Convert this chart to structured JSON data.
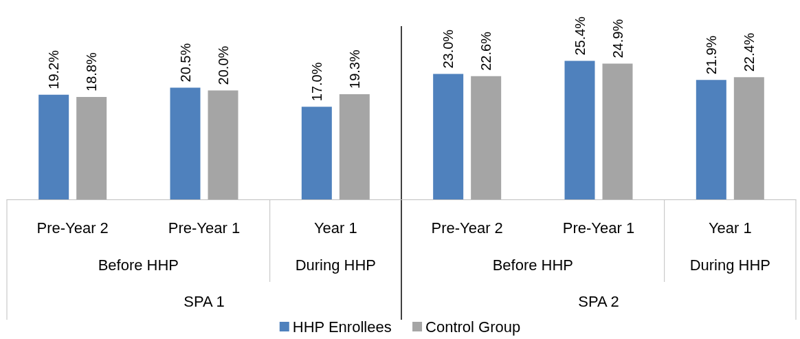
{
  "chart_data": {
    "type": "bar",
    "categories": [
      "Pre-Year 2",
      "Pre-Year 1",
      "Year 1",
      "Pre-Year 2",
      "Pre-Year 1",
      "Year 1"
    ],
    "series": [
      {
        "name": "HHP Enrollees",
        "color": "#4f81bd",
        "values": [
          19.2,
          20.5,
          17.0,
          23.0,
          25.4,
          21.9
        ],
        "value_labels": [
          "19.2%",
          "20.5%",
          "17.0%",
          "23.0%",
          "25.4%",
          "21.9%"
        ]
      },
      {
        "name": "Control Group",
        "color": "#a5a5a5",
        "values": [
          18.8,
          20.0,
          19.3,
          22.6,
          24.9,
          22.4
        ],
        "value_labels": [
          "18.8%",
          "20.0%",
          "19.3%",
          "22.6%",
          "24.9%",
          "22.4%"
        ]
      }
    ],
    "annotations": [
      "Before HHP",
      "During HHP",
      "Before HHP",
      "During HHP",
      "SPA 1",
      "SPA 2"
    ],
    "grid": false,
    "legend": "bottom"
  }
}
